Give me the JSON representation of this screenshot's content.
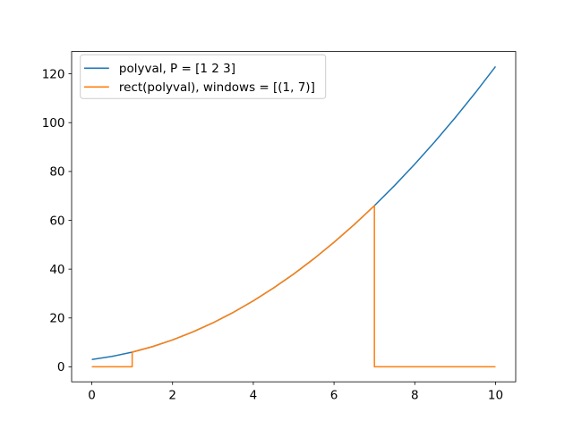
{
  "chart_data": {
    "type": "line",
    "title": "",
    "xlabel": "",
    "ylabel": "",
    "xlim": [
      -0.5,
      10.5
    ],
    "ylim": [
      -6.15,
      129.15
    ],
    "xticks": [
      0,
      2,
      4,
      6,
      8,
      10
    ],
    "yticks": [
      0,
      20,
      40,
      60,
      80,
      100,
      120
    ],
    "grid": false,
    "legend_position": "upper left",
    "series": [
      {
        "name": "polyval, P = [1 2 3]",
        "color": "#1f77b4",
        "points": [
          [
            0,
            3
          ],
          [
            0.5,
            4.25
          ],
          [
            1,
            6
          ],
          [
            1.5,
            8.25
          ],
          [
            2,
            11
          ],
          [
            2.5,
            14.25
          ],
          [
            3,
            18
          ],
          [
            3.5,
            22.25
          ],
          [
            4,
            27
          ],
          [
            4.5,
            32.25
          ],
          [
            5,
            38
          ],
          [
            5.5,
            44.25
          ],
          [
            6,
            51
          ],
          [
            6.5,
            58.25
          ],
          [
            7,
            66
          ],
          [
            7.5,
            74.25
          ],
          [
            8,
            83
          ],
          [
            8.5,
            92.25
          ],
          [
            9,
            102
          ],
          [
            9.5,
            112.25
          ],
          [
            10,
            123
          ]
        ]
      },
      {
        "name": "rect(polyval), windows = [(1, 7)]",
        "color": "#ff7f0e",
        "points": [
          [
            0,
            0
          ],
          [
            1,
            0
          ],
          [
            1,
            6
          ],
          [
            1.5,
            8.25
          ],
          [
            2,
            11
          ],
          [
            2.5,
            14.25
          ],
          [
            3,
            18
          ],
          [
            3.5,
            22.25
          ],
          [
            4,
            27
          ],
          [
            4.5,
            32.25
          ],
          [
            5,
            38
          ],
          [
            5.5,
            44.25
          ],
          [
            6,
            51
          ],
          [
            6.5,
            58.25
          ],
          [
            7,
            66
          ],
          [
            7,
            0
          ],
          [
            10,
            0
          ]
        ]
      }
    ]
  }
}
